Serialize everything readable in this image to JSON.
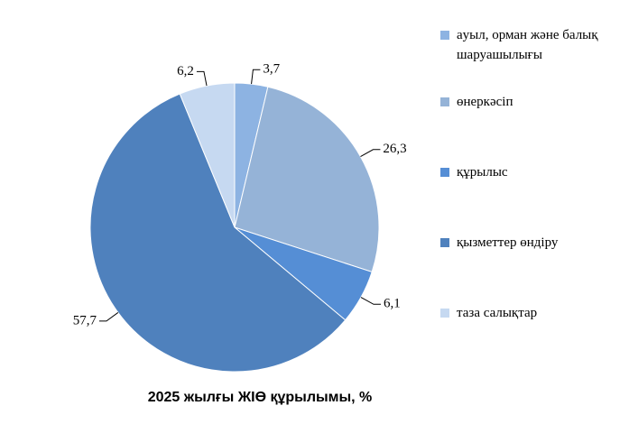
{
  "chart_data": {
    "type": "pie",
    "title": "2025 жылғы ЖІӨ құрылымы, %",
    "categories": [
      "аyыл, орман және балық шаруашылығы",
      "өнеркәсіп",
      "құрылыс",
      "қызметтер өндіру",
      "таза салықтар"
    ],
    "values": [
      3.7,
      26.3,
      6.1,
      57.7,
      6.2
    ],
    "value_labels": [
      "3,7",
      "26,3",
      "6,1",
      "57,7",
      "6,2"
    ],
    "colors": [
      "#8db3e2",
      "#95b3d7",
      "#558ed5",
      "#4f81bd",
      "#c6d9f1"
    ],
    "legend": "right"
  }
}
